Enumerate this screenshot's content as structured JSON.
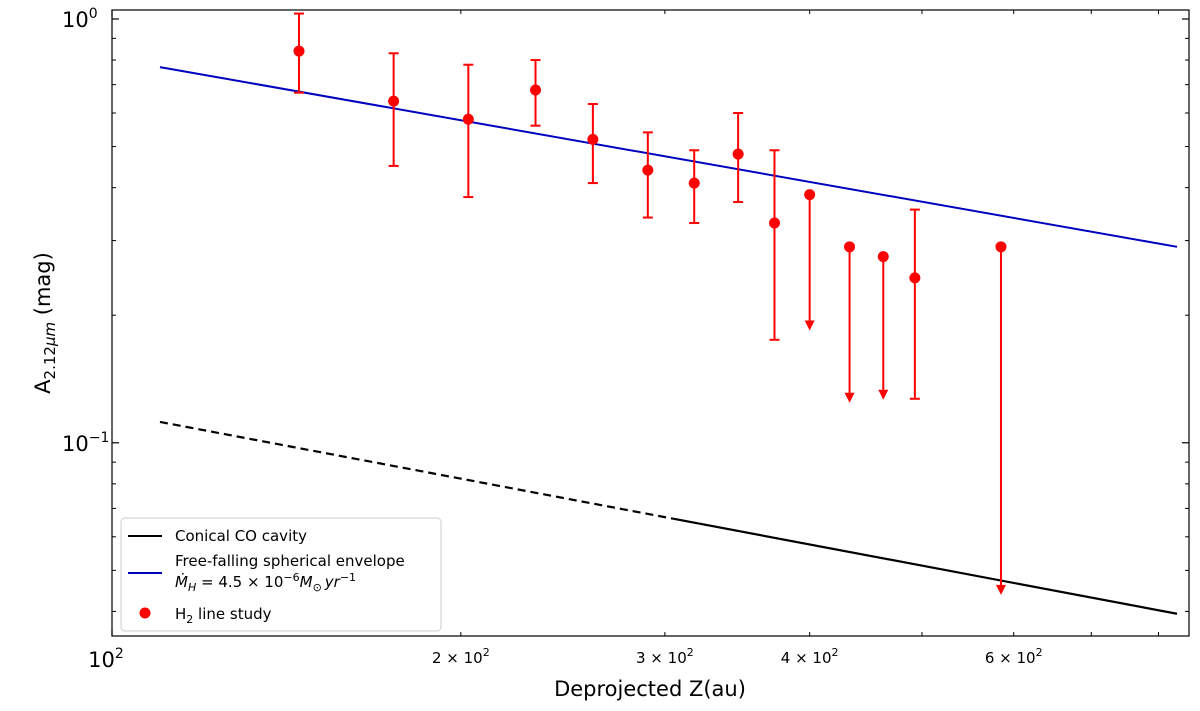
{
  "chart_data": {
    "type": "scatter",
    "xscale": "log",
    "yscale": "log",
    "xlim": [
      100,
      850
    ],
    "ylim": [
      0.035,
      1.05
    ],
    "xlabel_main": "Deprojected Z(au)",
    "ylabel_main": "A",
    "ylabel_sub": "2.12",
    "ylabel_sub_greek": "μ",
    "ylabel_sub_m": "m",
    "ylabel_unit": " (mag)",
    "x_major_ticks": [
      {
        "value": 100,
        "base": "10",
        "exp": "2",
        "mantissa": ""
      }
    ],
    "x_minor_labeled_ticks": [
      {
        "value": 200,
        "mantissa": "2",
        "times": "×",
        "base": "10",
        "exp": "2"
      },
      {
        "value": 300,
        "mantissa": "3",
        "times": "×",
        "base": "10",
        "exp": "2"
      },
      {
        "value": 400,
        "mantissa": "4",
        "times": "×",
        "base": "10",
        "exp": "2"
      },
      {
        "value": 600,
        "mantissa": "6",
        "times": "×",
        "base": "10",
        "exp": "2"
      }
    ],
    "x_minor_unlabeled_ticks": [
      500,
      700,
      800
    ],
    "y_major_ticks": [
      {
        "value": 0.1,
        "base": "10",
        "exp": "−1"
      },
      {
        "value": 1.0,
        "base": "10",
        "exp": "0"
      }
    ],
    "y_minor_ticks": [
      0.04,
      0.05,
      0.06,
      0.07,
      0.08,
      0.09,
      0.2,
      0.3,
      0.4,
      0.5,
      0.6,
      0.7,
      0.8,
      0.9
    ],
    "series": [
      {
        "name": "Conical CO cavity",
        "kind": "line",
        "color": "#000000",
        "dashed_x_range": [
          110,
          305
        ],
        "x": [
          110,
          830
        ],
        "y": [
          0.112,
          0.0395
        ]
      },
      {
        "name": "Free-falling spherical envelope",
        "kind": "line",
        "color": "#0000bf",
        "x": [
          110,
          830
        ],
        "y": [
          0.77,
          0.29
        ]
      },
      {
        "name": "H2 line study",
        "kind": "errorbar",
        "color": "#ff0000",
        "points": [
          {
            "x": 145,
            "y": 0.84,
            "yerr_low": 0.67,
            "yerr_high": 1.03,
            "upper_limit": false
          },
          {
            "x": 175,
            "y": 0.64,
            "yerr_low": 0.45,
            "yerr_high": 0.83,
            "upper_limit": false
          },
          {
            "x": 203,
            "y": 0.58,
            "yerr_low": 0.38,
            "yerr_high": 0.78,
            "upper_limit": false
          },
          {
            "x": 232,
            "y": 0.68,
            "yerr_low": 0.56,
            "yerr_high": 0.8,
            "upper_limit": false
          },
          {
            "x": 260,
            "y": 0.52,
            "yerr_low": 0.41,
            "yerr_high": 0.63,
            "upper_limit": false
          },
          {
            "x": 290,
            "y": 0.44,
            "yerr_low": 0.34,
            "yerr_high": 0.54,
            "upper_limit": false
          },
          {
            "x": 318,
            "y": 0.41,
            "yerr_low": 0.33,
            "yerr_high": 0.49,
            "upper_limit": false
          },
          {
            "x": 347,
            "y": 0.48,
            "yerr_low": 0.37,
            "yerr_high": 0.6,
            "upper_limit": false
          },
          {
            "x": 373,
            "y": 0.33,
            "yerr_low": 0.175,
            "yerr_high": 0.49,
            "upper_limit": false
          },
          {
            "x": 400,
            "y": 0.385,
            "yerr_low": 0.185,
            "yerr_high": 0.385,
            "upper_limit": true
          },
          {
            "x": 433,
            "y": 0.29,
            "yerr_low": 0.125,
            "yerr_high": 0.29,
            "upper_limit": true
          },
          {
            "x": 463,
            "y": 0.275,
            "yerr_low": 0.127,
            "yerr_high": 0.275,
            "upper_limit": true
          },
          {
            "x": 493,
            "y": 0.245,
            "yerr_low": 0.127,
            "yerr_high": 0.355,
            "upper_limit": false
          },
          {
            "x": 585,
            "y": 0.29,
            "yerr_low": 0.044,
            "yerr_high": 0.29,
            "upper_limit": true
          }
        ]
      }
    ],
    "legend": {
      "position": "lower-left",
      "entries": [
        {
          "label": "Conical CO cavity"
        },
        {
          "label": "Free-falling spherical envelope",
          "label2_prefix": "Ṁ",
          "label2_sub": "H",
          "label2_mid": " = 4.5 × 10",
          "label2_exp": "−6",
          "label2_after": "M",
          "label2_sub2": "⊙",
          "label2_tail": "yr",
          "label2_exp2": "−1"
        },
        {
          "label_main": "H",
          "label_sub": "2",
          "label_tail": " line study"
        }
      ]
    }
  }
}
